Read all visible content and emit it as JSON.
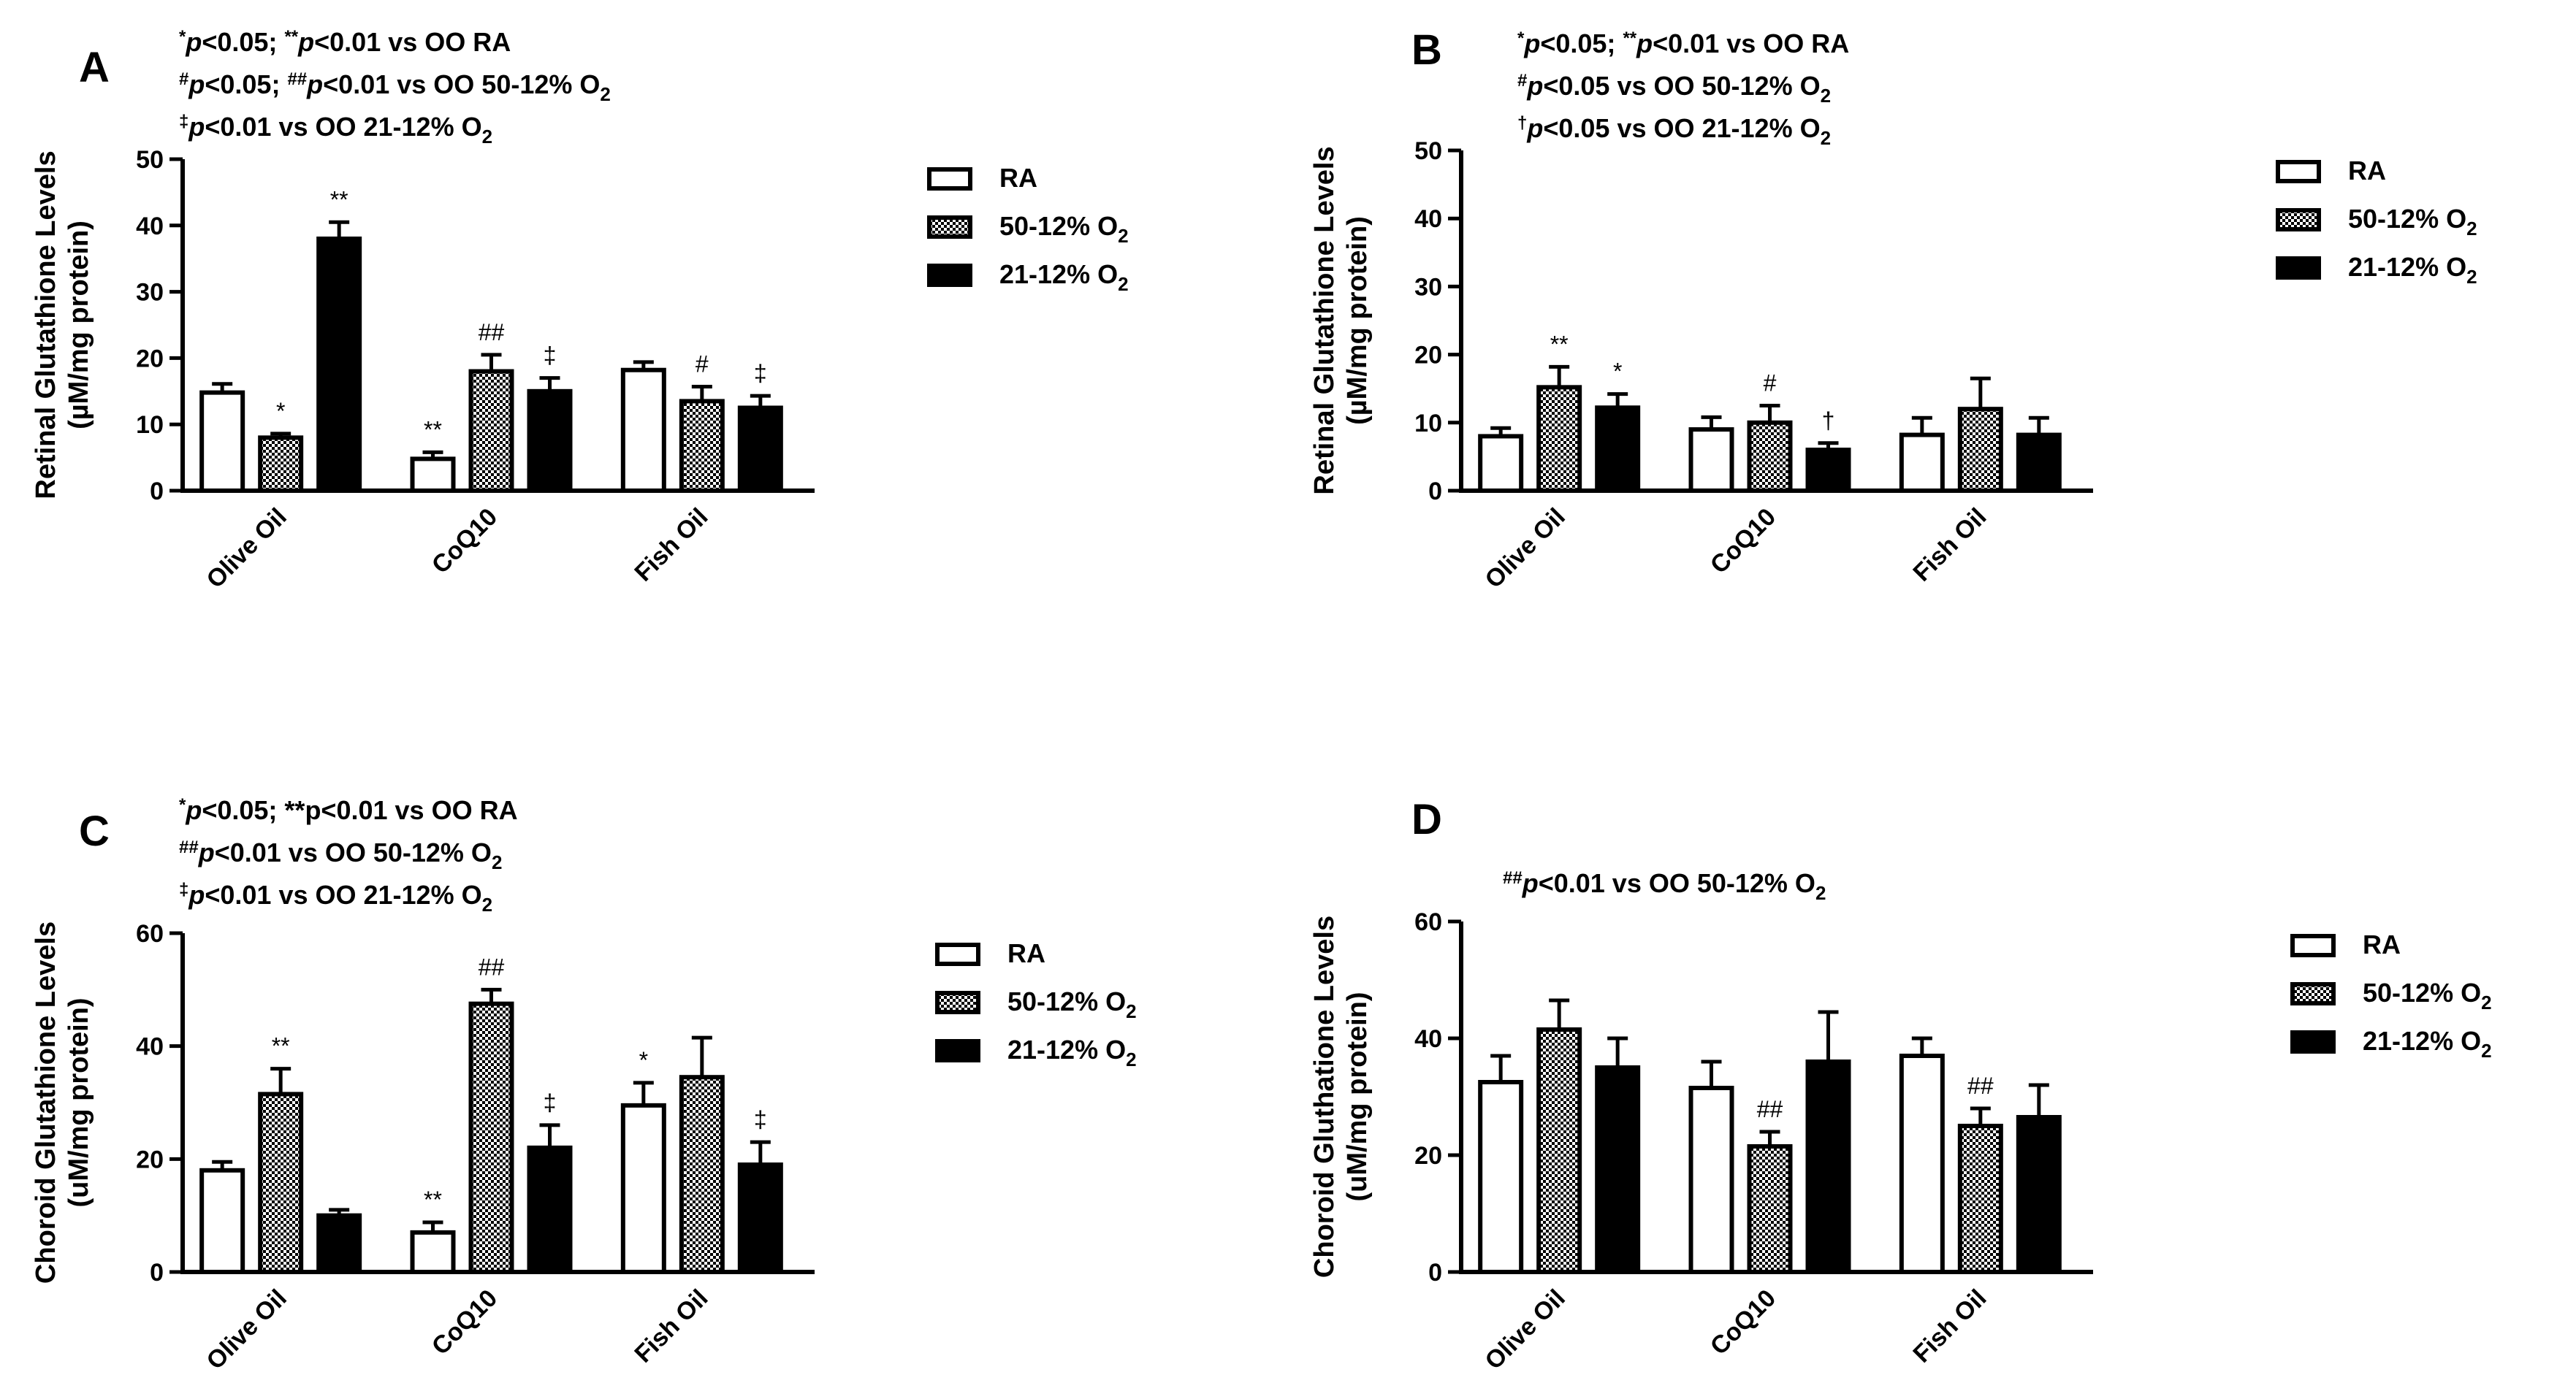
{
  "colors": {
    "ra_fill": "#ffffff",
    "o50_fill": "#7a7a7a",
    "o21_fill": "#000000",
    "axis": "#000000"
  },
  "chart_data": [
    {
      "id": "A",
      "type": "bar",
      "panel_label": "A",
      "ylabel_line1": "Retinal Glutathione Levels",
      "ylabel_line2": "(µM/mg protein)",
      "ylim": [
        0,
        50
      ],
      "yticks": [
        0,
        10,
        20,
        30,
        40,
        50
      ],
      "categories": [
        "Olive Oil",
        "CoQ10",
        "Fish Oil"
      ],
      "series": [
        {
          "name": "RA",
          "values": [
            14.8,
            4.8,
            18.2
          ],
          "errors": [
            1.3,
            1.0,
            1.2
          ],
          "annotations": [
            "",
            "**",
            ""
          ]
        },
        {
          "name": "50-12% O2",
          "values": [
            8.0,
            18.0,
            13.5
          ],
          "errors": [
            0.6,
            2.5,
            2.2
          ],
          "annotations": [
            "*",
            "##",
            "#"
          ]
        },
        {
          "name": "21-12% O2",
          "values": [
            38.0,
            15.0,
            12.5
          ],
          "errors": [
            2.5,
            2.0,
            1.8
          ],
          "annotations": [
            "**",
            "‡",
            "‡"
          ]
        }
      ],
      "notes": [
        {
          "sym": "*",
          "p1": "p",
          "t1": "<0.05; ",
          "sym2": "**",
          "p2": "p",
          "t2": "<0.01 vs OO RA"
        },
        {
          "sym": "#",
          "p1": "p",
          "t1": "<0.05; ",
          "sym2": "##",
          "p2": "p",
          "t2": "<0.01 vs OO 50-12% O",
          "sub": "2"
        },
        {
          "sym": "‡",
          "p1": "p",
          "t1": "<0.01 vs OO 21-12% O",
          "sub": "2"
        }
      ],
      "legend": [
        {
          "label": "RA",
          "sub": ""
        },
        {
          "label": "50-12% O",
          "sub": "2"
        },
        {
          "label": "21-12% O",
          "sub": "2"
        }
      ]
    },
    {
      "id": "B",
      "type": "bar",
      "panel_label": "B",
      "ylabel_line1": "Retinal Glutathione Levels",
      "ylabel_line2": "(µM/mg protein)",
      "ylim": [
        0,
        50
      ],
      "yticks": [
        0,
        10,
        20,
        30,
        40,
        50
      ],
      "categories": [
        "Olive Oil",
        "CoQ10",
        "Fish Oil"
      ],
      "series": [
        {
          "name": "RA",
          "values": [
            8.0,
            9.0,
            8.2
          ],
          "errors": [
            1.2,
            1.8,
            2.5
          ],
          "annotations": [
            "",
            "",
            ""
          ]
        },
        {
          "name": "50-12% O2",
          "values": [
            15.2,
            10.0,
            12.0
          ],
          "errors": [
            3.0,
            2.5,
            4.5
          ],
          "annotations": [
            "**",
            "#",
            ""
          ]
        },
        {
          "name": "21-12% O2",
          "values": [
            12.2,
            6.0,
            8.2
          ],
          "errors": [
            2.0,
            1.0,
            2.5
          ],
          "annotations": [
            "*",
            "†",
            ""
          ]
        }
      ],
      "notes": [
        {
          "sym": "*",
          "p1": "p",
          "t1": "<0.05; ",
          "sym2": "**",
          "p2": "p",
          "t2": "<0.01 vs OO RA"
        },
        {
          "sym": "#",
          "p1": "p",
          "t1": "<0.05 vs OO 50-12% O",
          "sub": "2"
        },
        {
          "sym": "†",
          "p1": "p",
          "t1": "<0.05 vs OO 21-12% O",
          "sub": "2"
        }
      ],
      "legend": [
        {
          "label": "RA",
          "sub": ""
        },
        {
          "label": "50-12% O",
          "sub": "2"
        },
        {
          "label": "21-12% O",
          "sub": "2"
        }
      ]
    },
    {
      "id": "C",
      "type": "bar",
      "panel_label": "C",
      "ylabel_line1": "Choroid Glutathione Levels",
      "ylabel_line2": "(uM/mg protein)",
      "ylim": [
        0,
        60
      ],
      "yticks": [
        0,
        20,
        40,
        60
      ],
      "categories": [
        "Olive Oil",
        "CoQ10",
        "Fish Oil"
      ],
      "series": [
        {
          "name": "RA",
          "values": [
            18.0,
            7.0,
            29.5
          ],
          "errors": [
            1.5,
            1.8,
            4.0
          ],
          "annotations": [
            "",
            "**",
            "*"
          ]
        },
        {
          "name": "50-12% O2",
          "values": [
            31.5,
            47.5,
            34.5
          ],
          "errors": [
            4.5,
            2.5,
            7.0
          ],
          "annotations": [
            "**",
            "##",
            ""
          ]
        },
        {
          "name": "21-12% O2",
          "values": [
            10.0,
            22.0,
            19.0
          ],
          "errors": [
            1.0,
            4.0,
            4.0
          ],
          "annotations": [
            "",
            "‡",
            "‡"
          ]
        }
      ],
      "notes": [
        {
          "sym": "*",
          "p1": "p",
          "t1": "<0.05; **p<0.01 vs OO RA"
        },
        {
          "sym": "##",
          "p1": "p",
          "t1": "<0.01 vs OO 50-12% O",
          "sub": "2"
        },
        {
          "sym": "‡",
          "p1": "p",
          "t1": "<0.01 vs OO 21-12% O",
          "sub": "2"
        }
      ],
      "legend": [
        {
          "label": "RA",
          "sub": ""
        },
        {
          "label": "50-12% O",
          "sub": "2"
        },
        {
          "label": "21-12% O",
          "sub": "2"
        }
      ]
    },
    {
      "id": "D",
      "type": "bar",
      "panel_label": "D",
      "ylabel_line1": "Choroid Gluthatione Levels",
      "ylabel_line2": "(uM/mg protein)",
      "ylim": [
        0,
        60
      ],
      "yticks": [
        0,
        20,
        40,
        60
      ],
      "categories": [
        "Olive Oil",
        "CoQ10",
        "Fish Oil"
      ],
      "series": [
        {
          "name": "RA",
          "values": [
            32.5,
            31.5,
            37.0
          ],
          "errors": [
            4.5,
            4.5,
            3.0
          ],
          "annotations": [
            "",
            "",
            ""
          ]
        },
        {
          "name": "50-12% O2",
          "values": [
            41.5,
            21.5,
            25.0
          ],
          "errors": [
            5.0,
            2.5,
            3.0
          ],
          "annotations": [
            "",
            "##",
            "##"
          ]
        },
        {
          "name": "21-12% O2",
          "values": [
            35.0,
            36.0,
            26.5
          ],
          "errors": [
            5.0,
            8.5,
            5.5
          ],
          "annotations": [
            "",
            "",
            ""
          ]
        }
      ],
      "notes": [
        {
          "sym": "##",
          "p1": "p",
          "t1": "<0.01 vs OO 50-12% O",
          "sub": "2"
        }
      ],
      "legend": [
        {
          "label": "RA",
          "sub": ""
        },
        {
          "label": "50-12% O",
          "sub": "2"
        },
        {
          "label": "21-12% O",
          "sub": "2"
        }
      ]
    }
  ]
}
